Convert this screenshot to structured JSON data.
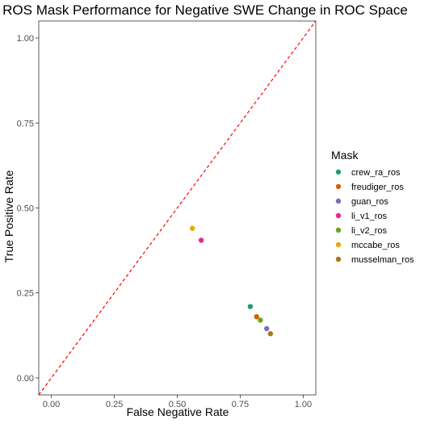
{
  "chart_data": {
    "type": "scatter",
    "title": "ROS Mask Performance for Negative SWE Change in ROC Space",
    "xlabel": "False Negative Rate",
    "ylabel": "True Positive Rate",
    "xlim": [
      -0.05,
      1.05
    ],
    "ylim": [
      -0.05,
      1.05
    ],
    "xticks": [
      "0.00",
      "0.25",
      "0.50",
      "0.75",
      "1.00"
    ],
    "yticks": [
      "0.00",
      "0.25",
      "0.50",
      "0.75",
      "1.00"
    ],
    "grid": false,
    "reference_line": {
      "from": [
        0,
        0
      ],
      "to": [
        1,
        1
      ],
      "style": "dashed",
      "color": "#ff0000"
    },
    "legend": {
      "title": "Mask",
      "placement": "right"
    },
    "series": [
      {
        "name": "crew_ra_ros",
        "color": "#1b9e77",
        "points": [
          {
            "x": 0.79,
            "y": 0.21
          }
        ]
      },
      {
        "name": "freudiger_ros",
        "color": "#d95f02",
        "points": [
          {
            "x": 0.815,
            "y": 0.18
          }
        ]
      },
      {
        "name": "guan_ros",
        "color": "#7570b3",
        "points": [
          {
            "x": 0.855,
            "y": 0.145
          }
        ]
      },
      {
        "name": "li_v1_ros",
        "color": "#e7298a",
        "points": [
          {
            "x": 0.595,
            "y": 0.405
          }
        ]
      },
      {
        "name": "li_v2_ros",
        "color": "#66a61e",
        "points": [
          {
            "x": 0.83,
            "y": 0.17
          }
        ]
      },
      {
        "name": "mccabe_ros",
        "color": "#e6ab02",
        "points": [
          {
            "x": 0.56,
            "y": 0.44
          }
        ]
      },
      {
        "name": "musselman_ros",
        "color": "#a6761d",
        "points": [
          {
            "x": 0.87,
            "y": 0.13
          }
        ]
      }
    ]
  }
}
